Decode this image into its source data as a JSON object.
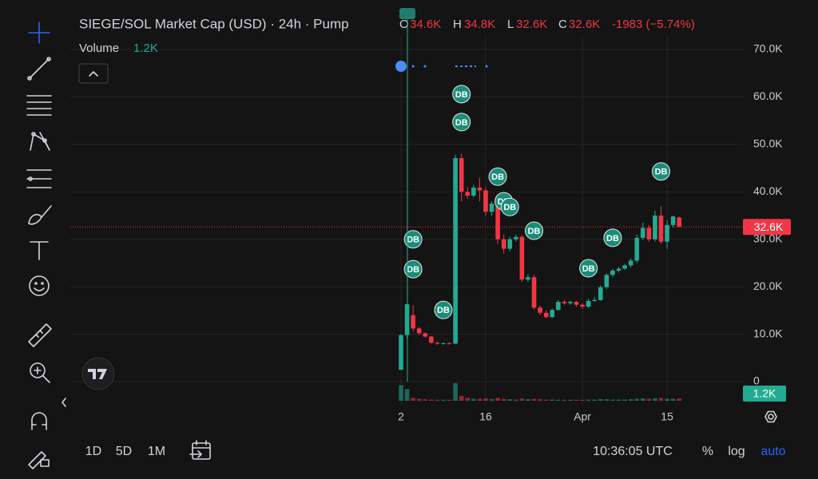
{
  "chart_data": {
    "type": "candlestick",
    "title": "SIEGE/SOL Market Cap (USD) · 24h · Pump",
    "pinned_marker": "DB",
    "legend": {
      "o_label": "O",
      "o": "34.6K",
      "h_label": "H",
      "h": "34.8K",
      "l_label": "L",
      "l": "32.6K",
      "c_label": "C",
      "c": "32.6K",
      "change": "-1983 (−5.74%)"
    },
    "volume_title": "Volume",
    "categories": [
      "2",
      null,
      null,
      null,
      null,
      null,
      null,
      null,
      null,
      null,
      null,
      null,
      null,
      null,
      "16",
      null,
      null,
      null,
      null,
      null,
      null,
      null,
      null,
      null,
      null,
      null,
      null,
      null,
      null,
      null,
      "Apr",
      null,
      null,
      null,
      null,
      null,
      null,
      null,
      null,
      null,
      null,
      null,
      null,
      null,
      "15",
      null,
      null
    ],
    "open": [
      2.5,
      9.8,
      14,
      11.2,
      10.2,
      9.5,
      8.2,
      8.0,
      8.1,
      8.0,
      47.1,
      40,
      39.2,
      40.9,
      40.3,
      35.8,
      37.3,
      30,
      28,
      30,
      30.5,
      21.5,
      22,
      15.6,
      14.5,
      13.6,
      15.1,
      16.8,
      16.5,
      16.8,
      16.2,
      15.8,
      17,
      17.2,
      19.9,
      22.5,
      23.4,
      23.8,
      24.5,
      25.5,
      30.3,
      32.4,
      30,
      35,
      29.5,
      33,
      34.6
    ],
    "high": [
      10,
      16.5,
      16,
      11.5,
      10.4,
      9.6,
      8.4,
      8.3,
      8.3,
      47.8,
      48,
      41,
      41.5,
      43,
      41,
      38,
      38,
      31,
      30.5,
      31,
      30.8,
      22.6,
      22.5,
      16,
      15,
      15.4,
      17.2,
      17.2,
      17,
      17,
      16.5,
      17.5,
      17.8,
      20.3,
      22.8,
      23.8,
      24.2,
      24.8,
      26,
      31,
      33.5,
      33,
      36,
      37,
      34,
      35,
      34.8
    ],
    "low": [
      2.5,
      9,
      10.5,
      9.8,
      9.2,
      8,
      7.8,
      7.8,
      7.8,
      7.9,
      38,
      38.5,
      38.8,
      38,
      35,
      35,
      29,
      27,
      27.5,
      29.5,
      21,
      21,
      15.2,
      14,
      13.3,
      13.4,
      15,
      16.2,
      16.2,
      15.8,
      15.3,
      15.5,
      16.8,
      17,
      19.5,
      22,
      23,
      23.5,
      24,
      25,
      29.8,
      29.5,
      29.5,
      29,
      28,
      32.5,
      32.6
    ],
    "close": [
      9.8,
      16.3,
      11.2,
      10.2,
      9.5,
      8.2,
      8.0,
      8.1,
      8.0,
      47.1,
      40,
      39.2,
      40.9,
      40.3,
      35.8,
      37.5,
      30,
      28,
      30,
      30.5,
      21.5,
      22,
      15.6,
      14.5,
      13.6,
      15.1,
      16.8,
      16.5,
      16.8,
      16.2,
      15.8,
      17,
      17.2,
      19.9,
      22.5,
      23.4,
      23.8,
      24.5,
      25.5,
      30.3,
      32.4,
      30,
      35,
      29.5,
      33,
      34.8,
      32.6
    ],
    "up_color": "#22ab94",
    "down_color": "#f23645",
    "volume": {
      "values": [
        8,
        6,
        1.5,
        1,
        0.8,
        0.6,
        0.5,
        0.5,
        0.5,
        9,
        2.5,
        1.5,
        1,
        1,
        1.2,
        0.8,
        1.5,
        1,
        0.8,
        0.6,
        1.2,
        0.8,
        1,
        0.8,
        0.6,
        0.6,
        0.5,
        0.5,
        0.5,
        0.5,
        0.5,
        0.6,
        0.6,
        0.8,
        0.8,
        0.6,
        0.6,
        0.6,
        0.8,
        1,
        1.2,
        1,
        1.2,
        1.4,
        1,
        1,
        1.2
      ],
      "last_label": "1.2K"
    },
    "last_price": {
      "value": 32.6,
      "label": "32.6K"
    },
    "ylim": [
      0,
      70
    ],
    "yticks": [
      0,
      {
        "value": 10,
        "label": "10.0K"
      },
      {
        "value": 20,
        "label": "20.0K"
      },
      {
        "value": 30,
        "label": "30.0K"
      },
      {
        "value": 40,
        "label": "40.0K"
      },
      {
        "value": 50,
        "label": "50.0K"
      },
      {
        "value": 60,
        "label": "60.0K"
      },
      {
        "value": 70,
        "label": "70.0K"
      }
    ],
    "grid": true,
    "markers": [
      {
        "label": "DB",
        "category": 2,
        "value": 30
      },
      {
        "label": "DB",
        "category": 2,
        "value": 23.7
      },
      {
        "label": "DB",
        "category": 7,
        "value": 15.1
      },
      {
        "label": "DB",
        "category": 10,
        "value": 60.6
      },
      {
        "label": "DB",
        "category": 10,
        "value": 54.7
      },
      {
        "label": "DB",
        "category": 16,
        "value": 43.2
      },
      {
        "label": "DB",
        "category": 17,
        "value": 38
      },
      {
        "label": "DB",
        "category": 18,
        "value": 36.8
      },
      {
        "label": "DB",
        "category": 22,
        "value": 31.8
      },
      {
        "label": "DB",
        "category": 31,
        "value": 23.9
      },
      {
        "label": "DB",
        "category": 35,
        "value": 30.3
      },
      {
        "label": "DB",
        "category": 43,
        "value": 44.3
      }
    ],
    "toolbar": {
      "intervals": [
        "1D",
        "5D",
        "1M"
      ],
      "clock": "10:36:05 UTC",
      "percent": "%",
      "log": "log",
      "auto": "auto"
    }
  }
}
